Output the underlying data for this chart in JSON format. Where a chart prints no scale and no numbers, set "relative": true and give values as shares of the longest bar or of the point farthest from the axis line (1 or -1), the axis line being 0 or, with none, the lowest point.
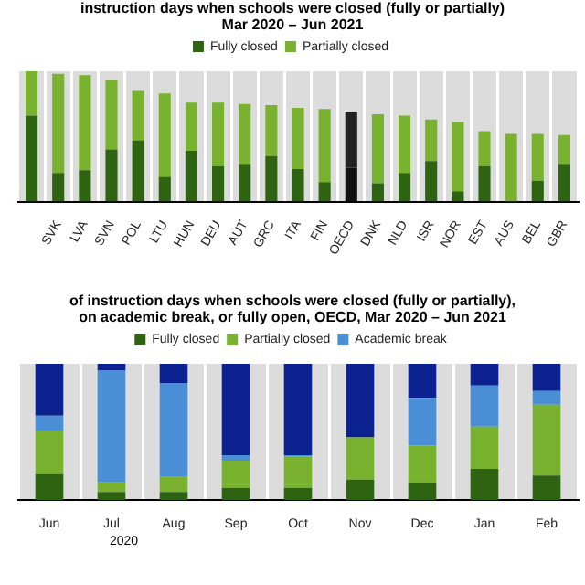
{
  "chart_data": [
    {
      "type": "bar",
      "title": "instruction days when schools were closed (fully or partially)",
      "subtitle": "Mar 2020 – Jun 2021",
      "categories": [
        null,
        "SVK",
        "LVA",
        "SVN",
        "POL",
        "LTU",
        "HUN",
        "DEU",
        "AUT",
        "GRC",
        "ITA",
        "FIN",
        "OECD",
        "DNK",
        "NLD",
        "ISR",
        "NOR",
        "EST",
        "AUS",
        "BEL",
        "GBR"
      ],
      "stacked": true,
      "relative": true,
      "grid": "x",
      "legend": "top",
      "series": [
        {
          "name": "Fully closed",
          "color": "#2e6312",
          "colors": [
            "#2e6312",
            "#2e6312",
            "#2e6312",
            "#2e6312",
            "#2e6312",
            "#2e6312",
            "#2e6312",
            "#2e6312",
            "#2e6312",
            "#2e6312",
            "#2e6312",
            "#2e6312",
            "#111111",
            "#2e6312",
            "#2e6312",
            "#2e6312",
            "#2e6312",
            "#2e6312",
            "#2e6312",
            "#2e6312",
            "#2e6312"
          ],
          "values": [
            0.66,
            0.22,
            0.24,
            0.4,
            0.47,
            0.19,
            0.39,
            0.27,
            0.29,
            0.35,
            0.25,
            0.15,
            0.26,
            0.14,
            0.22,
            0.31,
            0.08,
            0.27,
            0,
            0.16,
            0.29
          ]
        },
        {
          "name": "Partially closed",
          "color": "#78b22e",
          "colors": [
            "#78b22e",
            "#78b22e",
            "#78b22e",
            "#78b22e",
            "#78b22e",
            "#78b22e",
            "#78b22e",
            "#78b22e",
            "#78b22e",
            "#78b22e",
            "#78b22e",
            "#78b22e",
            "#222222",
            "#78b22e",
            "#78b22e",
            "#78b22e",
            "#78b22e",
            "#78b22e",
            "#78b22e",
            "#78b22e",
            "#78b22e"
          ],
          "values": [
            0.34,
            0.76,
            0.73,
            0.53,
            0.38,
            0.64,
            0.37,
            0.49,
            0.46,
            0.39,
            0.47,
            0.56,
            0.43,
            0.53,
            0.44,
            0.32,
            0.53,
            0.27,
            0.52,
            0.36,
            0.22
          ]
        }
      ]
    },
    {
      "type": "bar",
      "title": "of instruction days when schools were closed (fully or partially),",
      "subtitle": "on academic break, or fully open, OECD, Mar 2020 – Jun 2021",
      "categories": [
        "Jun",
        "Jul",
        "Aug",
        "Sep",
        "Oct",
        "Nov",
        "Dec",
        "Jan",
        "Feb"
      ],
      "stacked": true,
      "relative": true,
      "grid": "x",
      "legend": "top",
      "annotations": [
        "2020"
      ],
      "series": [
        {
          "name": "Fully closed",
          "color": "#2e6312",
          "values": [
            0.19,
            0.06,
            0.06,
            0.09,
            0.09,
            0.15,
            0.13,
            0.23,
            0.18
          ]
        },
        {
          "name": "Partially closed",
          "color": "#78b22e",
          "values": [
            0.32,
            0.07,
            0.11,
            0.2,
            0.23,
            0.31,
            0.27,
            0.31,
            0.52
          ]
        },
        {
          "name": "Academic break",
          "color": "#4a8fd6",
          "values": [
            0.11,
            0.82,
            0.69,
            0.04,
            0.01,
            0,
            0.35,
            0.3,
            0.1
          ]
        },
        {
          "color": "#0c2190",
          "values": [
            0.38,
            0.05,
            0.14,
            0.67,
            0.67,
            0.54,
            0.25,
            0.16,
            0.2
          ]
        }
      ]
    }
  ]
}
